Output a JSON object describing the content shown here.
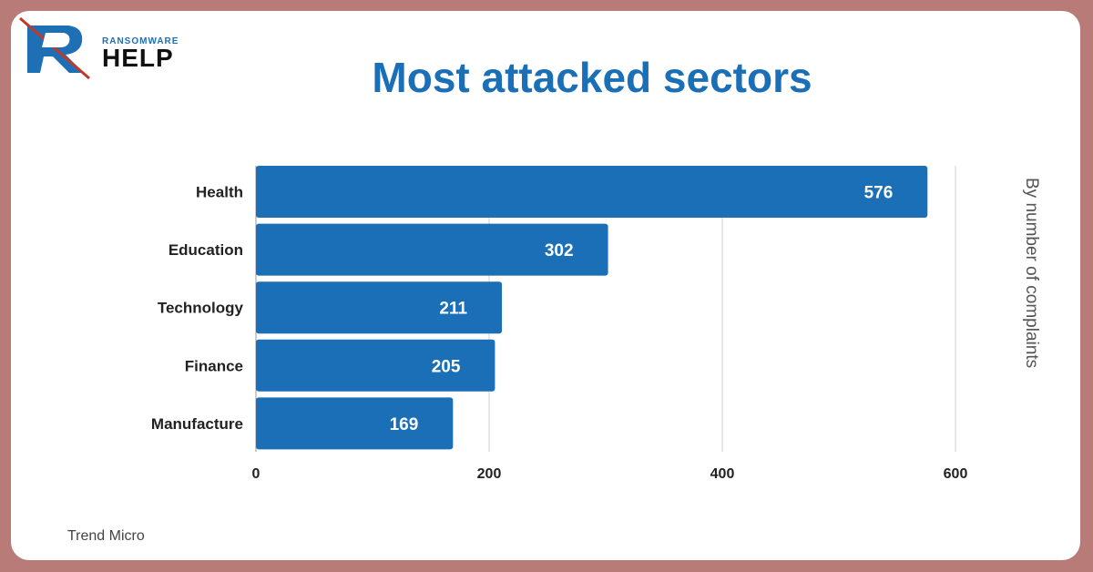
{
  "brand": {
    "small": "RANSOMWARE",
    "big": "HELP"
  },
  "title": "Most attacked sectors",
  "side_label": "By number of complaints",
  "source": "Trend Micro",
  "colors": {
    "bar": "#1b6fb6",
    "frame": "#b97b77",
    "title": "#1b6fb6",
    "grid": "#d0d0d0"
  },
  "chart_data": {
    "type": "bar",
    "orientation": "horizontal",
    "title": "Most attacked sectors",
    "xlabel": "",
    "ylabel": "By number of complaints",
    "categories": [
      "Health",
      "Education",
      "Technology",
      "Finance",
      "Manufacture"
    ],
    "values": [
      576,
      302,
      211,
      205,
      169
    ],
    "xlim": [
      0,
      600
    ],
    "xticks": [
      0,
      200,
      400,
      600
    ],
    "grid": true,
    "data_labels": true
  }
}
